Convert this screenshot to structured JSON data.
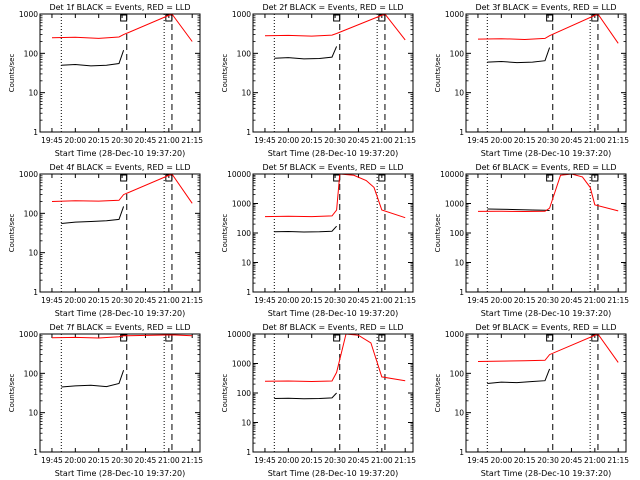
{
  "figure": {
    "common_xlabel": "Start Time (28-Dec-10 19:37:20)",
    "common_ylabel": "Counts/sec",
    "colors": {
      "events": "#000000",
      "lld": "#ff0000",
      "axes": "#000000",
      "background": "#ffffff"
    }
  },
  "chart_data": [
    {
      "type": "line",
      "title": "Det 1f BLACK = Events, RED = LLD",
      "xlabel": "Start Time (28-Dec-10 19:37:20)",
      "ylabel": "Counts/sec",
      "yscale": "log",
      "ylim": [
        1,
        1000
      ],
      "yticks": [
        "1",
        "10",
        "100",
        "1000"
      ],
      "xticks": [
        "19:45",
        "20:00",
        "20:15",
        "20:30",
        "20:45",
        "21:00",
        "21:15"
      ],
      "markers": {
        "dotted": [
          "19:51",
          "20:57"
        ],
        "dashed": [
          "20:33",
          "21:02"
        ],
        "boxes": [
          "20:31",
          "21:00"
        ]
      },
      "series": [
        {
          "name": "BLACK = Events",
          "x": [
            "19:51",
            "20:00",
            "20:10",
            "20:20",
            "20:28",
            "20:31"
          ],
          "values": [
            50,
            52,
            48,
            50,
            55,
            120
          ]
        },
        {
          "name": "RED = LLD",
          "x": [
            "19:45",
            "20:00",
            "20:15",
            "20:28",
            "20:31",
            "21:02",
            "21:15"
          ],
          "values": [
            250,
            255,
            240,
            260,
            300,
            1000,
            200
          ]
        }
      ]
    },
    {
      "type": "line",
      "title": "Det 2f BLACK = Events, RED = LLD",
      "xlabel": "Start Time (28-Dec-10 19:37:20)",
      "ylabel": "Counts/sec",
      "yscale": "log",
      "ylim": [
        1,
        1000
      ],
      "yticks": [
        "1",
        "10",
        "100",
        "1000"
      ],
      "xticks": [
        "19:45",
        "20:00",
        "20:15",
        "20:30",
        "20:45",
        "21:00",
        "21:15"
      ],
      "markers": {
        "dotted": [
          "19:51",
          "20:57"
        ],
        "dashed": [
          "20:33",
          "21:02"
        ],
        "boxes": [
          "20:31",
          "21:00"
        ]
      },
      "series": [
        {
          "name": "BLACK = Events",
          "x": [
            "19:51",
            "20:00",
            "20:10",
            "20:20",
            "20:28",
            "20:31"
          ],
          "values": [
            75,
            78,
            72,
            74,
            80,
            150
          ]
        },
        {
          "name": "RED = LLD",
          "x": [
            "19:45",
            "20:00",
            "20:15",
            "20:28",
            "20:31",
            "21:02",
            "21:15"
          ],
          "values": [
            280,
            285,
            275,
            290,
            320,
            1000,
            220
          ]
        }
      ]
    },
    {
      "type": "line",
      "title": "Det 3f BLACK = Events, RED = LLD",
      "xlabel": "Start Time (28-Dec-10 19:37:20)",
      "ylabel": "Counts/sec",
      "yscale": "log",
      "ylim": [
        1,
        1000
      ],
      "yticks": [
        "1",
        "10",
        "100",
        "1000"
      ],
      "xticks": [
        "19:45",
        "20:00",
        "20:15",
        "20:30",
        "20:45",
        "21:00",
        "21:15"
      ],
      "markers": {
        "dotted": [
          "19:51",
          "20:57"
        ],
        "dashed": [
          "20:33",
          "21:02"
        ],
        "boxes": [
          "20:31",
          "21:00"
        ]
      },
      "series": [
        {
          "name": "BLACK = Events",
          "x": [
            "19:51",
            "20:00",
            "20:10",
            "20:20",
            "20:28",
            "20:31"
          ],
          "values": [
            60,
            62,
            58,
            60,
            65,
            140
          ]
        },
        {
          "name": "RED = LLD",
          "x": [
            "19:45",
            "20:00",
            "20:15",
            "20:28",
            "20:31",
            "21:02",
            "21:15"
          ],
          "values": [
            230,
            235,
            225,
            240,
            280,
            1000,
            180
          ]
        }
      ]
    },
    {
      "type": "line",
      "title": "Det 4f BLACK = Events, RED = LLD",
      "xlabel": "Start Time (28-Dec-10 19:37:20)",
      "ylabel": "Counts/sec",
      "yscale": "log",
      "ylim": [
        1,
        1000
      ],
      "yticks": [
        "1",
        "10",
        "100",
        "1000"
      ],
      "xticks": [
        "19:45",
        "20:00",
        "20:15",
        "20:30",
        "20:45",
        "21:00",
        "21:15"
      ],
      "markers": {
        "dotted": [
          "19:51",
          "20:57"
        ],
        "dashed": [
          "20:33",
          "21:02"
        ],
        "boxes": [
          "20:31",
          "21:00"
        ]
      },
      "series": [
        {
          "name": "BLACK = Events",
          "x": [
            "19:51",
            "20:00",
            "20:10",
            "20:20",
            "20:28",
            "20:31"
          ],
          "values": [
            55,
            60,
            62,
            65,
            70,
            150
          ]
        },
        {
          "name": "RED = LLD",
          "x": [
            "19:45",
            "20:00",
            "20:15",
            "20:28",
            "20:31",
            "21:02",
            "21:15"
          ],
          "values": [
            200,
            210,
            205,
            215,
            300,
            1000,
            180
          ]
        }
      ]
    },
    {
      "type": "line",
      "title": "Det 5f BLACK = Events, RED = LLD",
      "xlabel": "Start Time (28-Dec-10 19:37:20)",
      "ylabel": "Counts/sec",
      "yscale": "log",
      "ylim": [
        1,
        10000
      ],
      "yticks": [
        "1",
        "10",
        "100",
        "1000",
        "10000"
      ],
      "xticks": [
        "19:45",
        "20:00",
        "20:15",
        "20:30",
        "20:45",
        "21:00",
        "21:15"
      ],
      "markers": {
        "dotted": [
          "19:51",
          "20:57"
        ],
        "dashed": [
          "20:33",
          "21:02"
        ],
        "boxes": [
          "20:31",
          "21:00"
        ]
      },
      "series": [
        {
          "name": "BLACK = Events",
          "x": [
            "19:51",
            "20:00",
            "20:10",
            "20:20",
            "20:28",
            "20:31"
          ],
          "values": [
            110,
            112,
            108,
            110,
            115,
            170
          ]
        },
        {
          "name": "RED = LLD",
          "x": [
            "19:45",
            "20:00",
            "20:15",
            "20:28",
            "20:31",
            "20:33",
            "20:42",
            "20:50",
            "20:55",
            "21:00",
            "21:15"
          ],
          "values": [
            360,
            370,
            360,
            380,
            600,
            10000,
            9000,
            6000,
            3500,
            600,
            330
          ]
        }
      ]
    },
    {
      "type": "line",
      "title": "Det 6f BLACK = Events, RED = LLD",
      "xlabel": "Start Time (28-Dec-10 19:37:20)",
      "ylabel": "Counts/sec",
      "yscale": "log",
      "ylim": [
        1,
        10000
      ],
      "yticks": [
        "1",
        "10",
        "100",
        "1000",
        "10000"
      ],
      "xticks": [
        "19:45",
        "20:00",
        "20:15",
        "20:30",
        "20:45",
        "21:00",
        "21:15"
      ],
      "markers": {
        "dotted": [
          "19:51",
          "20:57"
        ],
        "dashed": [
          "20:33",
          "21:02"
        ],
        "boxes": [
          "20:31",
          "21:00"
        ]
      },
      "series": [
        {
          "name": "BLACK = Events",
          "x": [
            "19:51",
            "20:00",
            "20:10",
            "20:20",
            "20:28",
            "20:31"
          ],
          "values": [
            650,
            640,
            620,
            600,
            590,
            580
          ]
        },
        {
          "name": "RED = LLD",
          "x": [
            "19:45",
            "20:00",
            "20:15",
            "20:28",
            "20:31",
            "20:38",
            "20:45",
            "20:52",
            "20:57",
            "21:00",
            "21:15"
          ],
          "values": [
            540,
            545,
            535,
            545,
            700,
            9000,
            10000,
            8000,
            3500,
            900,
            560
          ]
        }
      ]
    },
    {
      "type": "line",
      "title": "Det 7f BLACK = Events, RED = LLD",
      "xlabel": "Start Time (28-Dec-10 19:37:20)",
      "ylabel": "Counts/sec",
      "yscale": "log",
      "ylim": [
        1,
        1000
      ],
      "yticks": [
        "1",
        "10",
        "100",
        "1000"
      ],
      "xticks": [
        "19:45",
        "20:00",
        "20:15",
        "20:30",
        "20:45",
        "21:00",
        "21:15"
      ],
      "markers": {
        "dotted": [
          "19:51",
          "20:57"
        ],
        "dashed": [
          "20:33",
          "21:02"
        ],
        "boxes": [
          "20:31",
          "21:00"
        ]
      },
      "series": [
        {
          "name": "BLACK = Events",
          "x": [
            "19:51",
            "20:00",
            "20:10",
            "20:20",
            "20:28",
            "20:31"
          ],
          "values": [
            45,
            48,
            50,
            46,
            55,
            120
          ]
        },
        {
          "name": "RED = LLD",
          "x": [
            "19:45",
            "20:00",
            "20:15",
            "20:28",
            "20:31",
            "21:02",
            "21:15"
          ],
          "values": [
            800,
            820,
            790,
            850,
            900,
            950,
            900
          ]
        }
      ]
    },
    {
      "type": "line",
      "title": "Det 8f BLACK = Events, RED = LLD",
      "xlabel": "Start Time (28-Dec-10 19:37:20)",
      "ylabel": "Counts/sec",
      "yscale": "log",
      "ylim": [
        1,
        10000
      ],
      "yticks": [
        "1",
        "10",
        "100",
        "1000",
        "10000"
      ],
      "xticks": [
        "19:45",
        "20:00",
        "20:15",
        "20:30",
        "20:45",
        "21:00",
        "21:15"
      ],
      "markers": {
        "dotted": [
          "19:51",
          "20:57"
        ],
        "dashed": [
          "20:33",
          "21:02"
        ],
        "boxes": [
          "20:31",
          "21:00"
        ]
      },
      "series": [
        {
          "name": "BLACK = Events",
          "x": [
            "19:51",
            "20:00",
            "20:10",
            "20:20",
            "20:28",
            "20:31"
          ],
          "values": [
            65,
            66,
            64,
            65,
            68,
            100
          ]
        },
        {
          "name": "RED = LLD",
          "x": [
            "19:45",
            "20:00",
            "20:15",
            "20:28",
            "20:31",
            "20:37",
            "20:45",
            "20:53",
            "21:00",
            "21:15"
          ],
          "values": [
            250,
            255,
            245,
            255,
            500,
            10000,
            9000,
            5000,
            350,
            260
          ]
        }
      ]
    },
    {
      "type": "line",
      "title": "Det 9f BLACK = Events, RED = LLD",
      "xlabel": "Start Time (28-Dec-10 19:37:20)",
      "ylabel": "Counts/sec",
      "yscale": "log",
      "ylim": [
        1,
        1000
      ],
      "yticks": [
        "1",
        "10",
        "100",
        "1000"
      ],
      "xticks": [
        "19:45",
        "20:00",
        "20:15",
        "20:30",
        "20:45",
        "21:00",
        "21:15"
      ],
      "markers": {
        "dotted": [
          "19:51",
          "20:57"
        ],
        "dashed": [
          "20:33",
          "21:02"
        ],
        "boxes": [
          "20:31",
          "21:00"
        ]
      },
      "series": [
        {
          "name": "BLACK = Events",
          "x": [
            "19:51",
            "20:00",
            "20:10",
            "20:20",
            "20:28",
            "20:31"
          ],
          "values": [
            55,
            60,
            58,
            62,
            65,
            130
          ]
        },
        {
          "name": "RED = LLD",
          "x": [
            "19:45",
            "20:00",
            "20:15",
            "20:28",
            "20:31",
            "21:02",
            "21:15"
          ],
          "values": [
            200,
            205,
            210,
            215,
            300,
            1000,
            190
          ]
        }
      ]
    }
  ]
}
